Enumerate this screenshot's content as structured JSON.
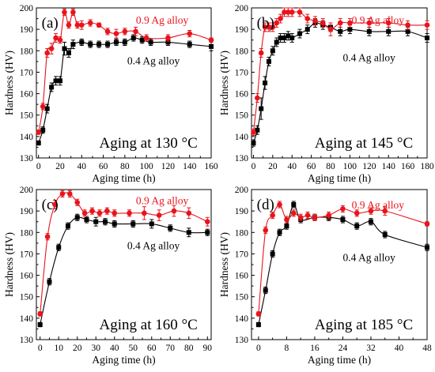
{
  "chart_data": [
    {
      "type": "line",
      "panel_label": "(a)",
      "annotation": "Aging at 130 °C",
      "xlabel": "Aging time (h)",
      "ylabel": "Hardness (HV)",
      "xlim": [
        -2,
        160
      ],
      "ylim": [
        130,
        200
      ],
      "xticks": [
        0,
        20,
        40,
        60,
        80,
        100,
        120,
        140,
        160
      ],
      "yticks": [
        130,
        140,
        150,
        160,
        170,
        180,
        190,
        200
      ],
      "series": [
        {
          "name": "0.9 Ag alloy",
          "color": "#e8141c",
          "x": [
            0,
            4,
            8,
            12,
            16,
            20,
            24,
            28,
            32,
            36,
            40,
            48,
            56,
            64,
            72,
            80,
            90,
            100,
            120,
            140,
            160
          ],
          "y": [
            142,
            154,
            179,
            181,
            186,
            185,
            198,
            192,
            198,
            192,
            192,
            193,
            192,
            189,
            188,
            189,
            189,
            186,
            186,
            188,
            185
          ],
          "err": [
            1,
            1.5,
            2,
            2.5,
            2,
            1.5,
            1.5,
            1.5,
            1.5,
            1.5,
            2,
            1.5,
            1,
            1.5,
            2,
            1.5,
            2,
            1.5,
            1.5,
            1.5,
            1
          ]
        },
        {
          "name": "0.4 Ag alloy",
          "color": "#000000",
          "x": [
            0,
            4,
            8,
            12,
            16,
            20,
            24,
            28,
            32,
            40,
            48,
            56,
            64,
            72,
            80,
            88,
            96,
            104,
            120,
            140,
            160
          ],
          "y": [
            137,
            143,
            153,
            163,
            166,
            166,
            181,
            179,
            183,
            184,
            183,
            183,
            183,
            184,
            184,
            186,
            185,
            184,
            184,
            183,
            182
          ],
          "err": [
            1,
            1.5,
            2,
            2,
            2,
            2,
            3,
            2,
            2,
            1.5,
            1.5,
            1.5,
            1.5,
            1.5,
            1.5,
            1.5,
            1.5,
            1.5,
            1.5,
            1.5,
            2
          ]
        }
      ]
    },
    {
      "type": "line",
      "panel_label": "(b)",
      "annotation": "Aging at 145 °C",
      "xlabel": "Aging time (h)",
      "ylabel": "Hardness (HV)",
      "xlim": [
        -2,
        180
      ],
      "ylim": [
        130,
        200
      ],
      "xticks": [
        0,
        20,
        40,
        60,
        80,
        100,
        120,
        140,
        160,
        180
      ],
      "yticks": [
        130,
        140,
        150,
        160,
        170,
        180,
        190,
        200
      ],
      "series": [
        {
          "name": "0.9 Ag alloy",
          "color": "#e8141c",
          "x": [
            0,
            4,
            8,
            12,
            16,
            20,
            24,
            28,
            32,
            36,
            40,
            48,
            56,
            64,
            72,
            80,
            90,
            100,
            120,
            140,
            160,
            180
          ],
          "y": [
            142,
            158,
            179,
            191,
            191,
            191,
            193,
            195,
            198,
            198,
            198,
            198,
            195,
            194,
            193,
            190,
            193,
            193,
            193,
            193,
            192,
            192
          ],
          "err": [
            1.5,
            2,
            2,
            2,
            2,
            2,
            2,
            2,
            2,
            2,
            2,
            2,
            2,
            2,
            2,
            3,
            2,
            2,
            2,
            2,
            2,
            2
          ]
        },
        {
          "name": "0.4 Ag alloy",
          "color": "#000000",
          "x": [
            0,
            4,
            8,
            12,
            16,
            20,
            24,
            28,
            32,
            36,
            40,
            48,
            56,
            64,
            72,
            80,
            90,
            100,
            120,
            140,
            160,
            180
          ],
          "y": [
            137,
            143,
            153,
            165,
            175,
            180,
            184,
            186,
            186,
            187,
            186,
            188,
            190,
            193,
            192,
            191,
            189,
            190,
            189,
            189,
            189,
            186
          ],
          "err": [
            1.5,
            2,
            5,
            3,
            2,
            2,
            2,
            2,
            2,
            2,
            2,
            2,
            2,
            2,
            2,
            2,
            2,
            2,
            2,
            2,
            2,
            2
          ]
        }
      ]
    },
    {
      "type": "line",
      "panel_label": "(c)",
      "annotation": "Aging at 160 °C",
      "xlabel": "Aging time (h)",
      "ylabel": "Hardness (HV)",
      "xlim": [
        -2,
        92
      ],
      "ylim": [
        130,
        200
      ],
      "xticks": [
        0,
        10,
        20,
        30,
        40,
        50,
        60,
        70,
        80,
        90
      ],
      "yticks": [
        130,
        140,
        150,
        160,
        170,
        180,
        190,
        200
      ],
      "series": [
        {
          "name": "0.9 Ag alloy",
          "color": "#e8141c",
          "x": [
            0,
            4,
            8,
            12,
            16,
            20,
            24,
            28,
            32,
            36,
            40,
            48,
            56,
            64,
            72,
            80,
            90
          ],
          "y": [
            142,
            178,
            193,
            198,
            198,
            194,
            189,
            190,
            189,
            190,
            189,
            189,
            189,
            188,
            190,
            189,
            185
          ],
          "err": [
            1,
            1.5,
            2,
            1.5,
            1.5,
            1.5,
            1.5,
            1.5,
            1.5,
            1.5,
            1.5,
            1.5,
            3,
            2.5,
            2.5,
            2.5,
            2
          ]
        },
        {
          "name": "0.4 Ag alloy",
          "color": "#000000",
          "x": [
            0,
            5,
            10,
            15,
            20,
            25,
            30,
            35,
            40,
            50,
            60,
            70,
            80,
            90
          ],
          "y": [
            137,
            157,
            173,
            183,
            187,
            186,
            185,
            185,
            184,
            184,
            184,
            182,
            180,
            180
          ],
          "err": [
            1,
            1.5,
            1.5,
            1.5,
            1.5,
            1.5,
            2,
            1.5,
            1.5,
            1.5,
            2,
            1.5,
            2,
            1.5
          ]
        }
      ]
    },
    {
      "type": "line",
      "panel_label": "(d)",
      "annotation": "Aging at 185 °C",
      "xlabel": "Aging time (h)",
      "ylabel": "Hardness (HV)",
      "xlim": [
        -2,
        48
      ],
      "ylim": [
        130,
        200
      ],
      "xticks": [
        0,
        8,
        16,
        24,
        32,
        40,
        48
      ],
      "yticks": [
        130,
        140,
        150,
        160,
        170,
        180,
        190,
        200
      ],
      "series": [
        {
          "name": "0.9 Ag alloy",
          "color": "#e8141c",
          "x": [
            0,
            2,
            4,
            6,
            8,
            10,
            12,
            14,
            16,
            20,
            24,
            28,
            32,
            36,
            48
          ],
          "y": [
            142,
            181,
            188,
            193,
            186,
            189,
            187,
            188,
            187,
            188,
            191,
            189,
            190,
            190,
            184
          ],
          "err": [
            1,
            1.5,
            1.5,
            1.5,
            1.5,
            1.5,
            1.5,
            1.5,
            1.5,
            1.5,
            1.5,
            1.5,
            1.5,
            2,
            1
          ]
        },
        {
          "name": "0.4 Ag alloy",
          "color": "#000000",
          "x": [
            0,
            2,
            4,
            6,
            8,
            10,
            12,
            16,
            20,
            24,
            28,
            32,
            36,
            48
          ],
          "y": [
            137,
            153,
            170,
            180,
            183,
            193,
            186,
            187,
            187,
            186,
            183,
            185,
            179,
            173
          ],
          "err": [
            1,
            1.5,
            1.5,
            1.5,
            1.5,
            1.5,
            1.5,
            1.5,
            1.5,
            1.5,
            1.5,
            1.5,
            1.5,
            1.5
          ]
        }
      ]
    }
  ]
}
